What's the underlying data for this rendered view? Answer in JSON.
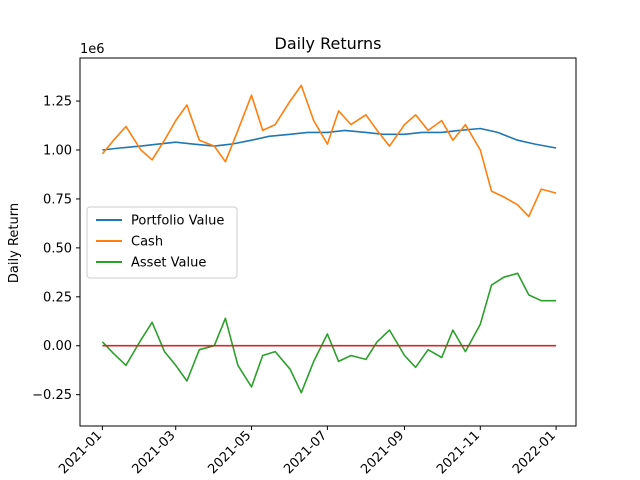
{
  "chart_data": {
    "type": "line",
    "title": "Daily Returns",
    "xlabel": "",
    "ylabel": "Daily Return",
    "offset_label": "1e6",
    "y_scale_factor": 1000000,
    "x_ticks": [
      "2021-01",
      "2021-03",
      "2021-05",
      "2021-07",
      "2021-09",
      "2021-11",
      "2022-01"
    ],
    "y_ticks": [
      "−0.25",
      "0.00",
      "0.25",
      "0.50",
      "0.75",
      "1.00",
      "1.25"
    ],
    "xlim": [
      "2020-12-14",
      "2022-01-17"
    ],
    "ylim": [
      -410000,
      1470000
    ],
    "grid": false,
    "legend_position": "center-left",
    "series": [
      {
        "name": "Portfolio Value",
        "color": "#1f77b4",
        "x": [
          "2021-01-01",
          "2021-01-15",
          "2021-02-01",
          "2021-02-15",
          "2021-03-01",
          "2021-03-15",
          "2021-04-01",
          "2021-04-15",
          "2021-05-01",
          "2021-05-15",
          "2021-06-01",
          "2021-06-15",
          "2021-07-01",
          "2021-07-15",
          "2021-08-01",
          "2021-08-15",
          "2021-09-01",
          "2021-09-15",
          "2021-10-01",
          "2021-10-15",
          "2021-11-01",
          "2021-11-15",
          "2021-12-01",
          "2021-12-15",
          "2022-01-01"
        ],
        "values": [
          1000000,
          1010000,
          1020000,
          1030000,
          1040000,
          1030000,
          1020000,
          1030000,
          1050000,
          1070000,
          1080000,
          1090000,
          1090000,
          1100000,
          1090000,
          1080000,
          1080000,
          1090000,
          1090000,
          1100000,
          1110000,
          1090000,
          1050000,
          1030000,
          1010000
        ]
      },
      {
        "name": "Cash",
        "color": "#ff7f0e",
        "x": [
          "2021-01-01",
          "2021-01-10",
          "2021-01-20",
          "2021-02-01",
          "2021-02-10",
          "2021-02-20",
          "2021-03-01",
          "2021-03-10",
          "2021-03-20",
          "2021-04-01",
          "2021-04-10",
          "2021-04-20",
          "2021-05-01",
          "2021-05-10",
          "2021-05-20",
          "2021-06-01",
          "2021-06-10",
          "2021-06-20",
          "2021-07-01",
          "2021-07-10",
          "2021-07-20",
          "2021-08-01",
          "2021-08-10",
          "2021-08-20",
          "2021-09-01",
          "2021-09-10",
          "2021-09-20",
          "2021-10-01",
          "2021-10-10",
          "2021-10-20",
          "2021-11-01",
          "2021-11-10",
          "2021-11-20",
          "2021-12-01",
          "2021-12-10",
          "2021-12-20",
          "2022-01-01"
        ],
        "values": [
          980000,
          1050000,
          1120000,
          1000000,
          950000,
          1050000,
          1150000,
          1230000,
          1050000,
          1020000,
          940000,
          1100000,
          1280000,
          1100000,
          1130000,
          1250000,
          1330000,
          1150000,
          1030000,
          1200000,
          1130000,
          1180000,
          1100000,
          1020000,
          1130000,
          1180000,
          1100000,
          1150000,
          1050000,
          1130000,
          1000000,
          790000,
          760000,
          720000,
          660000,
          800000,
          780000
        ]
      },
      {
        "name": "Asset Value",
        "color": "#2ca02c",
        "x": [
          "2021-01-01",
          "2021-01-10",
          "2021-01-20",
          "2021-02-01",
          "2021-02-10",
          "2021-02-20",
          "2021-03-01",
          "2021-03-10",
          "2021-03-20",
          "2021-04-01",
          "2021-04-10",
          "2021-04-20",
          "2021-05-01",
          "2021-05-10",
          "2021-05-20",
          "2021-06-01",
          "2021-06-10",
          "2021-06-20",
          "2021-07-01",
          "2021-07-10",
          "2021-07-20",
          "2021-08-01",
          "2021-08-10",
          "2021-08-20",
          "2021-09-01",
          "2021-09-10",
          "2021-09-20",
          "2021-10-01",
          "2021-10-10",
          "2021-10-20",
          "2021-11-01",
          "2021-11-10",
          "2021-11-20",
          "2021-12-01",
          "2021-12-10",
          "2021-12-20",
          "2022-01-01"
        ],
        "values": [
          20000,
          -40000,
          -100000,
          30000,
          120000,
          -30000,
          -100000,
          -180000,
          -20000,
          0,
          140000,
          -100000,
          -210000,
          -50000,
          -30000,
          -120000,
          -240000,
          -80000,
          60000,
          -80000,
          -50000,
          -70000,
          20000,
          80000,
          -50000,
          -110000,
          -20000,
          -60000,
          80000,
          -30000,
          110000,
          310000,
          350000,
          370000,
          260000,
          230000,
          230000
        ]
      },
      {
        "name": "",
        "color": "#d62728",
        "x": [
          "2021-01-01",
          "2022-01-01"
        ],
        "values": [
          0,
          0
        ]
      }
    ]
  }
}
